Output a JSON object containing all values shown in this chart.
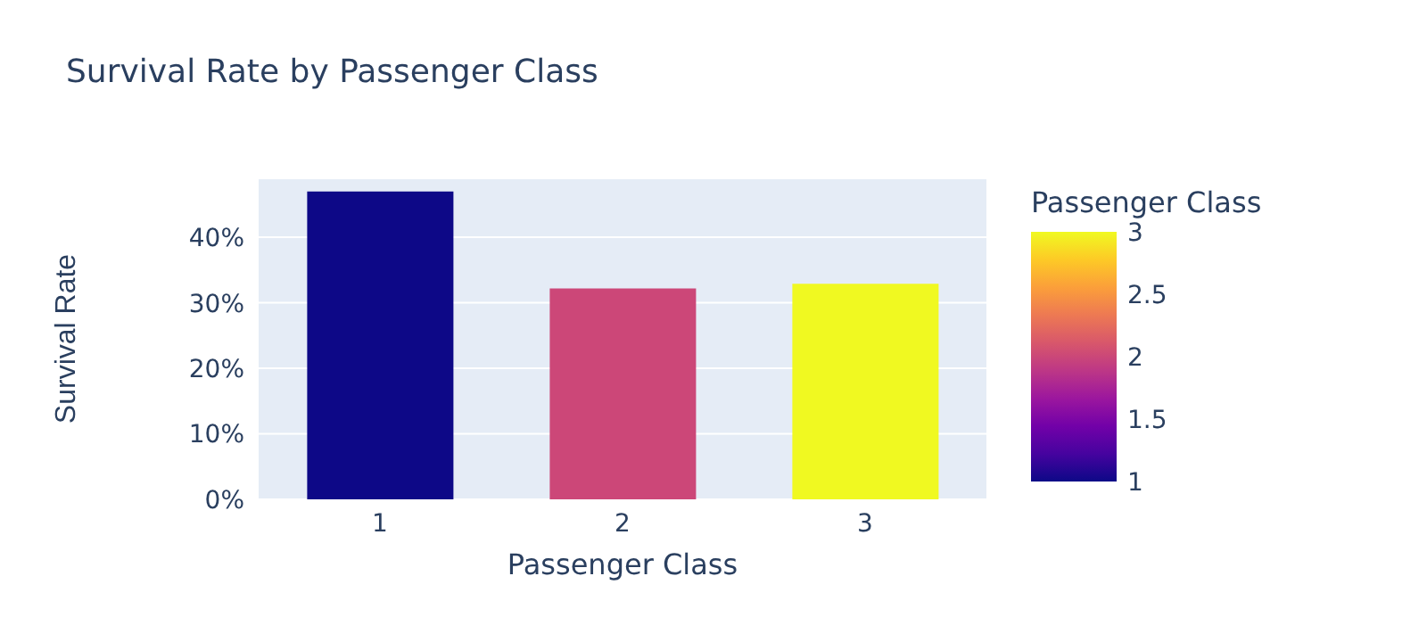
{
  "chart_data": {
    "type": "bar",
    "title": "Survival Rate by Passenger Class",
    "xlabel": "Passenger Class",
    "ylabel": "Survival Rate",
    "clabel": "Passenger Class",
    "categories": [
      "1",
      "2",
      "3"
    ],
    "values": [
      47,
      32.2,
      32.9
    ],
    "colors": [
      "#0d0887",
      "#cc4778",
      "#f0f921"
    ],
    "ylim": [
      0,
      49
    ],
    "yticks": [
      {
        "value": 0,
        "label": "0%"
      },
      {
        "value": 10,
        "label": "10%"
      },
      {
        "value": 20,
        "label": "20%"
      },
      {
        "value": 30,
        "label": "30%"
      },
      {
        "value": 40,
        "label": "40%"
      }
    ],
    "clim": [
      1,
      3
    ],
    "cticks": [
      1,
      1.5,
      2,
      2.5,
      3
    ],
    "grid": "y"
  }
}
